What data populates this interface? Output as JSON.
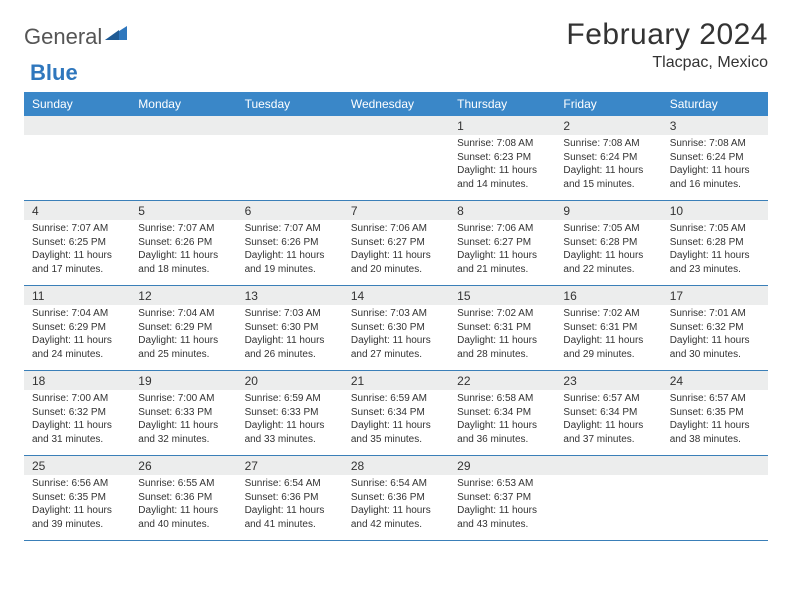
{
  "brand": {
    "word1": "General",
    "word2": "Blue",
    "accent_color": "#2f77bd"
  },
  "title": {
    "month": "February 2024",
    "location": "Tlacpac, Mexico"
  },
  "colors": {
    "header_bg": "#3a87c8",
    "header_text": "#ffffff",
    "row_divider": "#3a7fb8",
    "daynum_bar": "#eceded",
    "text": "#333333"
  },
  "day_names": [
    "Sunday",
    "Monday",
    "Tuesday",
    "Wednesday",
    "Thursday",
    "Friday",
    "Saturday"
  ],
  "weeks": [
    [
      null,
      null,
      null,
      null,
      {
        "n": "1",
        "sr": "Sunrise: 7:08 AM",
        "ss": "Sunset: 6:23 PM",
        "d1": "Daylight: 11 hours",
        "d2": "and 14 minutes."
      },
      {
        "n": "2",
        "sr": "Sunrise: 7:08 AM",
        "ss": "Sunset: 6:24 PM",
        "d1": "Daylight: 11 hours",
        "d2": "and 15 minutes."
      },
      {
        "n": "3",
        "sr": "Sunrise: 7:08 AM",
        "ss": "Sunset: 6:24 PM",
        "d1": "Daylight: 11 hours",
        "d2": "and 16 minutes."
      }
    ],
    [
      {
        "n": "4",
        "sr": "Sunrise: 7:07 AM",
        "ss": "Sunset: 6:25 PM",
        "d1": "Daylight: 11 hours",
        "d2": "and 17 minutes."
      },
      {
        "n": "5",
        "sr": "Sunrise: 7:07 AM",
        "ss": "Sunset: 6:26 PM",
        "d1": "Daylight: 11 hours",
        "d2": "and 18 minutes."
      },
      {
        "n": "6",
        "sr": "Sunrise: 7:07 AM",
        "ss": "Sunset: 6:26 PM",
        "d1": "Daylight: 11 hours",
        "d2": "and 19 minutes."
      },
      {
        "n": "7",
        "sr": "Sunrise: 7:06 AM",
        "ss": "Sunset: 6:27 PM",
        "d1": "Daylight: 11 hours",
        "d2": "and 20 minutes."
      },
      {
        "n": "8",
        "sr": "Sunrise: 7:06 AM",
        "ss": "Sunset: 6:27 PM",
        "d1": "Daylight: 11 hours",
        "d2": "and 21 minutes."
      },
      {
        "n": "9",
        "sr": "Sunrise: 7:05 AM",
        "ss": "Sunset: 6:28 PM",
        "d1": "Daylight: 11 hours",
        "d2": "and 22 minutes."
      },
      {
        "n": "10",
        "sr": "Sunrise: 7:05 AM",
        "ss": "Sunset: 6:28 PM",
        "d1": "Daylight: 11 hours",
        "d2": "and 23 minutes."
      }
    ],
    [
      {
        "n": "11",
        "sr": "Sunrise: 7:04 AM",
        "ss": "Sunset: 6:29 PM",
        "d1": "Daylight: 11 hours",
        "d2": "and 24 minutes."
      },
      {
        "n": "12",
        "sr": "Sunrise: 7:04 AM",
        "ss": "Sunset: 6:29 PM",
        "d1": "Daylight: 11 hours",
        "d2": "and 25 minutes."
      },
      {
        "n": "13",
        "sr": "Sunrise: 7:03 AM",
        "ss": "Sunset: 6:30 PM",
        "d1": "Daylight: 11 hours",
        "d2": "and 26 minutes."
      },
      {
        "n": "14",
        "sr": "Sunrise: 7:03 AM",
        "ss": "Sunset: 6:30 PM",
        "d1": "Daylight: 11 hours",
        "d2": "and 27 minutes."
      },
      {
        "n": "15",
        "sr": "Sunrise: 7:02 AM",
        "ss": "Sunset: 6:31 PM",
        "d1": "Daylight: 11 hours",
        "d2": "and 28 minutes."
      },
      {
        "n": "16",
        "sr": "Sunrise: 7:02 AM",
        "ss": "Sunset: 6:31 PM",
        "d1": "Daylight: 11 hours",
        "d2": "and 29 minutes."
      },
      {
        "n": "17",
        "sr": "Sunrise: 7:01 AM",
        "ss": "Sunset: 6:32 PM",
        "d1": "Daylight: 11 hours",
        "d2": "and 30 minutes."
      }
    ],
    [
      {
        "n": "18",
        "sr": "Sunrise: 7:00 AM",
        "ss": "Sunset: 6:32 PM",
        "d1": "Daylight: 11 hours",
        "d2": "and 31 minutes."
      },
      {
        "n": "19",
        "sr": "Sunrise: 7:00 AM",
        "ss": "Sunset: 6:33 PM",
        "d1": "Daylight: 11 hours",
        "d2": "and 32 minutes."
      },
      {
        "n": "20",
        "sr": "Sunrise: 6:59 AM",
        "ss": "Sunset: 6:33 PM",
        "d1": "Daylight: 11 hours",
        "d2": "and 33 minutes."
      },
      {
        "n": "21",
        "sr": "Sunrise: 6:59 AM",
        "ss": "Sunset: 6:34 PM",
        "d1": "Daylight: 11 hours",
        "d2": "and 35 minutes."
      },
      {
        "n": "22",
        "sr": "Sunrise: 6:58 AM",
        "ss": "Sunset: 6:34 PM",
        "d1": "Daylight: 11 hours",
        "d2": "and 36 minutes."
      },
      {
        "n": "23",
        "sr": "Sunrise: 6:57 AM",
        "ss": "Sunset: 6:34 PM",
        "d1": "Daylight: 11 hours",
        "d2": "and 37 minutes."
      },
      {
        "n": "24",
        "sr": "Sunrise: 6:57 AM",
        "ss": "Sunset: 6:35 PM",
        "d1": "Daylight: 11 hours",
        "d2": "and 38 minutes."
      }
    ],
    [
      {
        "n": "25",
        "sr": "Sunrise: 6:56 AM",
        "ss": "Sunset: 6:35 PM",
        "d1": "Daylight: 11 hours",
        "d2": "and 39 minutes."
      },
      {
        "n": "26",
        "sr": "Sunrise: 6:55 AM",
        "ss": "Sunset: 6:36 PM",
        "d1": "Daylight: 11 hours",
        "d2": "and 40 minutes."
      },
      {
        "n": "27",
        "sr": "Sunrise: 6:54 AM",
        "ss": "Sunset: 6:36 PM",
        "d1": "Daylight: 11 hours",
        "d2": "and 41 minutes."
      },
      {
        "n": "28",
        "sr": "Sunrise: 6:54 AM",
        "ss": "Sunset: 6:36 PM",
        "d1": "Daylight: 11 hours",
        "d2": "and 42 minutes."
      },
      {
        "n": "29",
        "sr": "Sunrise: 6:53 AM",
        "ss": "Sunset: 6:37 PM",
        "d1": "Daylight: 11 hours",
        "d2": "and 43 minutes."
      },
      null,
      null
    ]
  ]
}
